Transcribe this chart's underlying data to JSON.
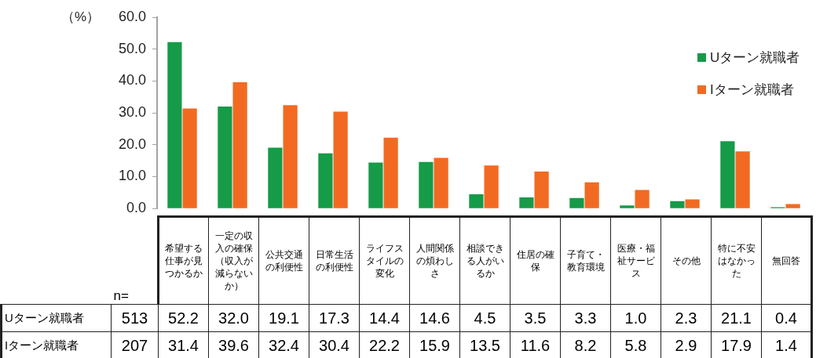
{
  "chart_data": {
    "type": "bar",
    "ylabel": "（%）",
    "categories": [
      "希望する仕事が見つかるか",
      "一定の収入の確保（収入が減らないか）",
      "公共交通の利便性",
      "日常生活の利便性",
      "ライフスタイルの変化",
      "人間関係の煩わしさ",
      "相談できる人がいるか",
      "住居の確保",
      "子育て・教育環境",
      "医療・福祉サービス",
      "その他",
      "特に不安はなかった",
      "無回答"
    ],
    "series": [
      {
        "name": "Uターン就職者",
        "color": "#169b48",
        "values": [
          52.2,
          32.0,
          19.1,
          17.3,
          14.4,
          14.6,
          4.5,
          3.5,
          3.3,
          1.0,
          2.3,
          21.1,
          0.4
        ],
        "value_labels": [
          "52.2",
          "32.0",
          "19.1",
          "17.3",
          "14.4",
          "14.6",
          "4.5",
          "3.5",
          "3.3",
          "1.0",
          "2.3",
          "21.1",
          "0.4"
        ]
      },
      {
        "name": "Iターン就職者",
        "color": "#f26a22",
        "values": [
          31.4,
          39.6,
          32.4,
          30.4,
          22.2,
          15.9,
          13.5,
          11.6,
          8.2,
          5.8,
          2.9,
          17.9,
          1.4
        ],
        "value_labels": [
          "31.4",
          "39.6",
          "32.4",
          "30.4",
          "22.2",
          "15.9",
          "13.5",
          "11.6",
          "8.2",
          "5.8",
          "2.9",
          "17.9",
          "1.4"
        ]
      }
    ],
    "ylim": [
      0,
      60
    ],
    "yticks": [
      {
        "value": 0,
        "label": "0.0"
      },
      {
        "value": 10,
        "label": "10.0"
      },
      {
        "value": 20,
        "label": "20.0"
      },
      {
        "value": 30,
        "label": "30.0"
      },
      {
        "value": 40,
        "label": "40.0"
      },
      {
        "value": 50,
        "label": "50.0"
      },
      {
        "value": 60,
        "label": "60.0"
      }
    ],
    "legend": "top right",
    "annotations": [
      "n=",
      "513",
      "207"
    ]
  }
}
